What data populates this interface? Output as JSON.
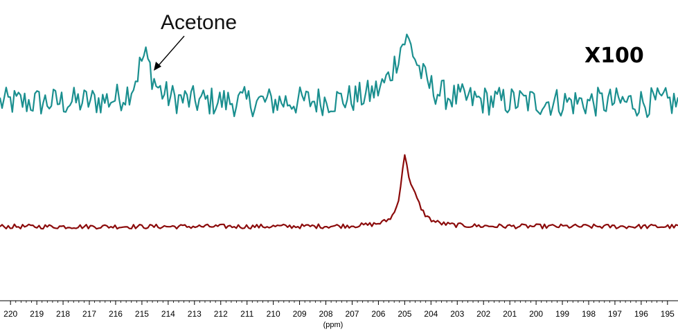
{
  "chart_data": {
    "type": "line",
    "title": "",
    "xlabel": "(ppm)",
    "ylabel": "",
    "x_reversed": true,
    "xlim": [
      220.4,
      194.6
    ],
    "ticks": [
      220,
      219,
      218,
      217,
      216,
      215,
      214,
      213,
      212,
      211,
      210,
      209,
      208,
      207,
      206,
      205,
      204,
      203,
      202,
      201,
      200,
      199,
      198,
      197,
      196,
      195
    ],
    "grid": false,
    "legend": "none",
    "annotations": [
      {
        "text": "Acetone",
        "x_ppm": 214.8
      },
      {
        "text": "X100"
      }
    ],
    "series": [
      {
        "color": "#1a8f8f",
        "scale": "x100",
        "baseline": 0,
        "noise": 1.8,
        "peaks": [
          {
            "center": 214.9,
            "height": 5.5,
            "width": 0.35
          },
          {
            "center": 204.95,
            "height": 7.5,
            "width": 0.55
          }
        ]
      },
      {
        "color": "#8b0a0a",
        "scale": "x1",
        "baseline": 0,
        "noise": 0.35,
        "peaks": [
          {
            "center": 205.0,
            "height": 9.0,
            "width": 0.18
          },
          {
            "center": 204.65,
            "height": 3.5,
            "width": 0.35
          }
        ]
      }
    ]
  }
}
